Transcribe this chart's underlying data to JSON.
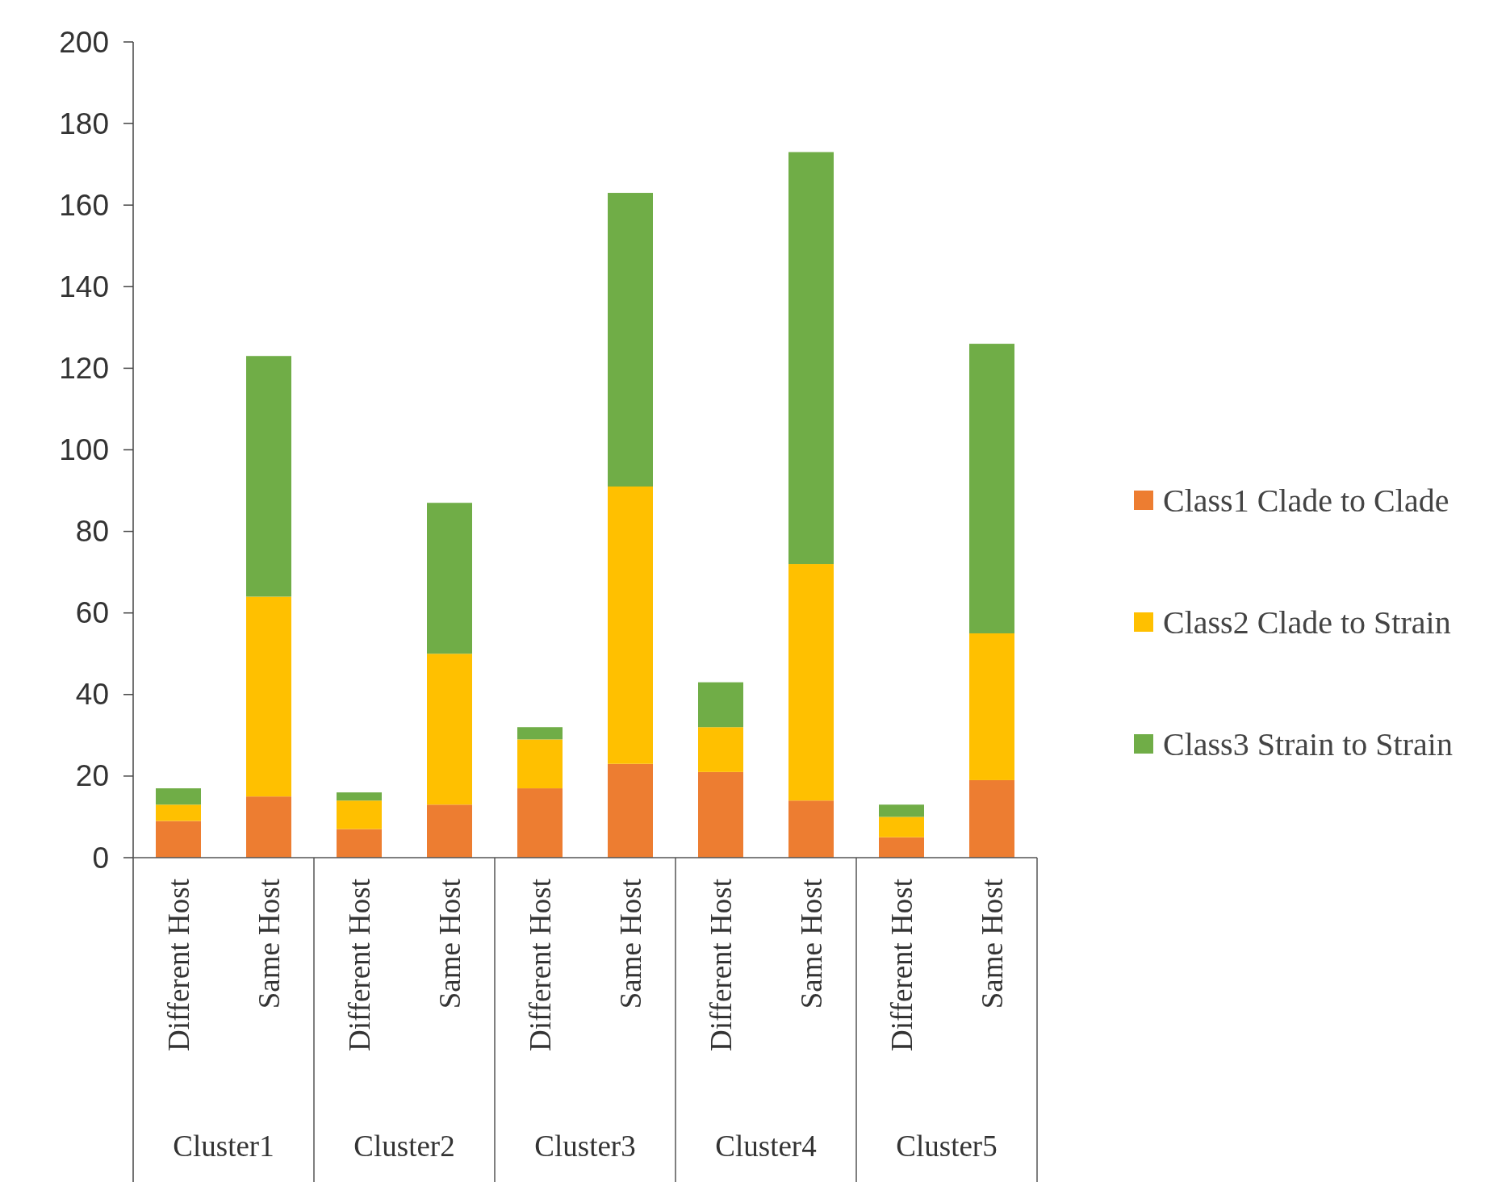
{
  "chart_data": {
    "type": "bar",
    "stacked": true,
    "categories": [
      "Different Host",
      "Same Host",
      "Different Host",
      "Same Host",
      "Different Host",
      "Same Host",
      "Different Host",
      "Same Host",
      "Different Host",
      "Same Host"
    ],
    "series": [
      {
        "name": "Class1 Clade to Clade",
        "color": "#ed7d31",
        "values": [
          9,
          15,
          7,
          13,
          17,
          23,
          21,
          14,
          5,
          19
        ]
      },
      {
        "name": "Class2 Clade to Strain",
        "color": "#ffc000",
        "values": [
          4,
          49,
          7,
          37,
          12,
          68,
          11,
          58,
          5,
          36
        ]
      },
      {
        "name": "Class3 Strain to Strain",
        "color": "#70ad47",
        "values": [
          4,
          59,
          2,
          37,
          3,
          72,
          11,
          101,
          3,
          71
        ]
      }
    ],
    "ylim": [
      0,
      200
    ],
    "yticks": [
      0,
      20,
      40,
      60,
      80,
      100,
      120,
      140,
      160,
      180,
      200
    ],
    "annotations": [
      "Cluster1",
      "Cluster2",
      "Cluster3",
      "Cluster4",
      "Cluster5"
    ],
    "legend": "right"
  }
}
